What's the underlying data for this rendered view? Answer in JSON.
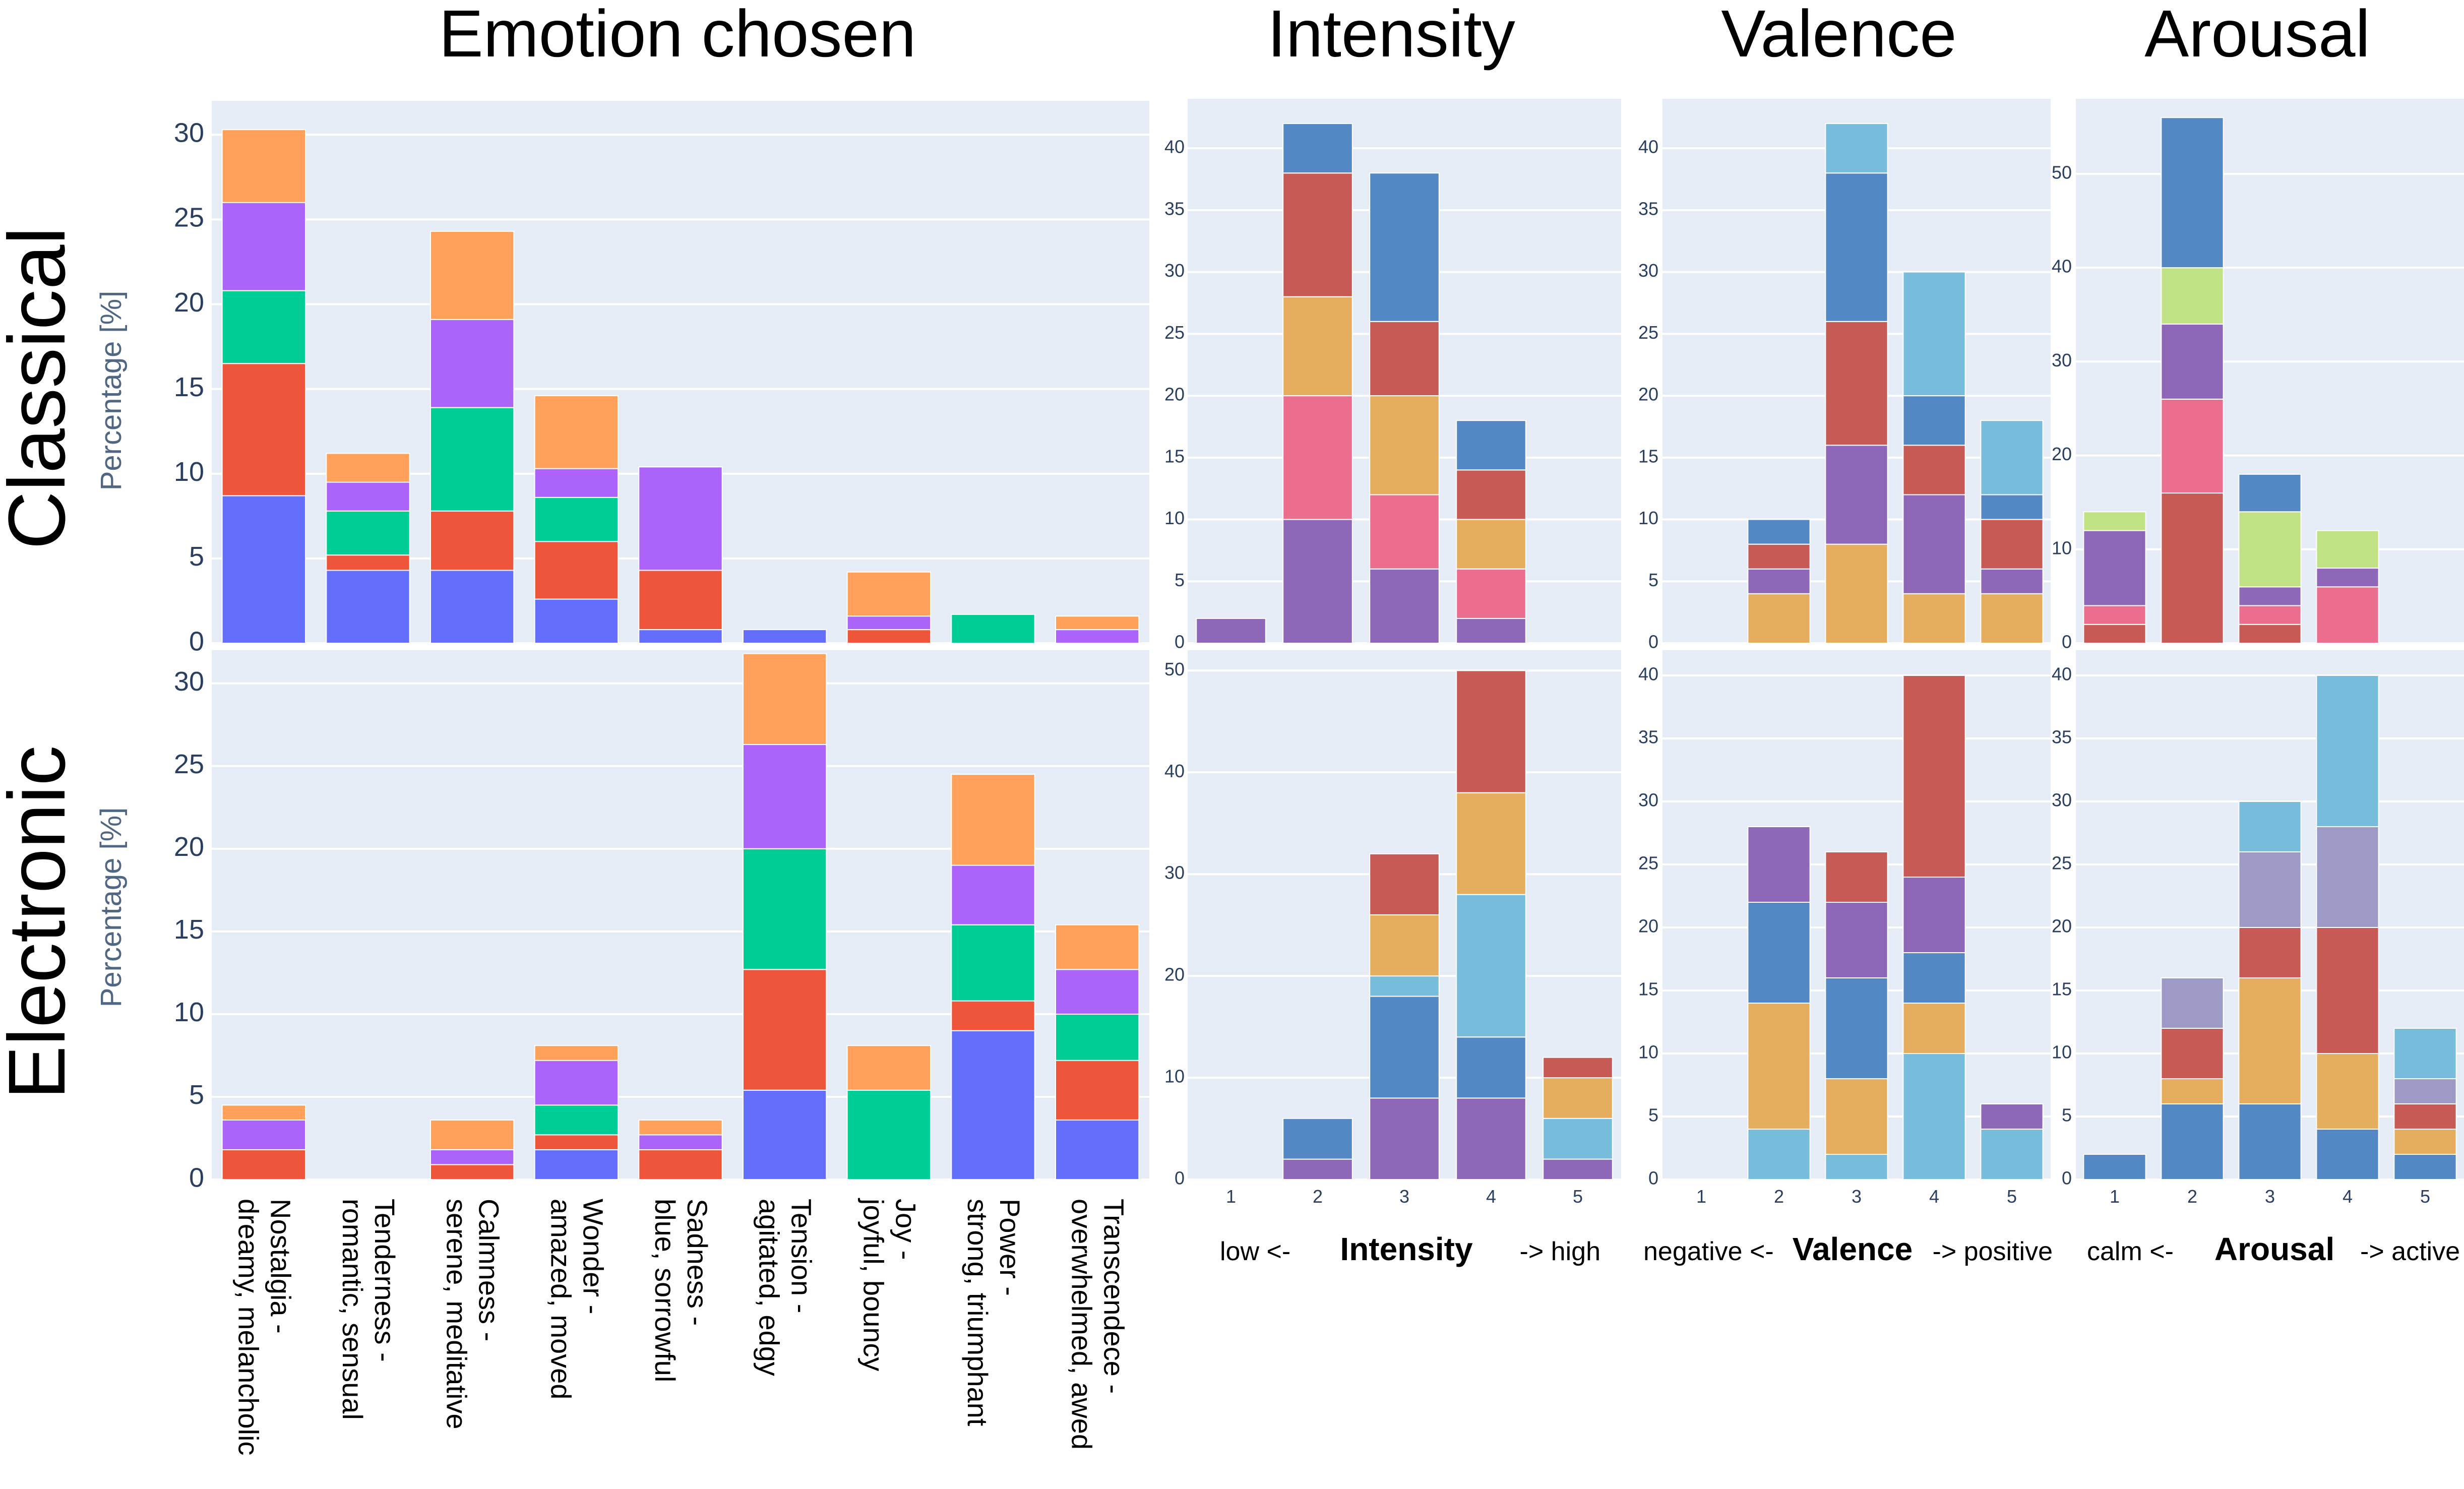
{
  "column_titles": {
    "emotion": "Emotion chosen",
    "intensity": "Intensity",
    "valence": "Valence",
    "arousal": "Arousal"
  },
  "row_labels": {
    "classical": "Classical",
    "electronic": "Electronic"
  },
  "ylabel": "Percentage [%]",
  "axis_titles": {
    "intensity": {
      "left": "low <-",
      "title": "Intensity",
      "right": "-> high"
    },
    "valence": {
      "left": "negative <-",
      "title": "Valence",
      "right": "-> positive"
    },
    "arousal": {
      "left": "calm <-",
      "title": "Arousal",
      "right": "-> active"
    }
  },
  "chart_data": [
    {
      "id": "emotion-classical",
      "type": "bar",
      "stacked": true,
      "categories": [
        "Nostalgia - dreamy, melancholic",
        "Tenderness - romantic, sensual",
        "Calmness - serene, meditative",
        "Wonder - amazed, moved",
        "Sadness - blue, sorrowful",
        "Tension - agitated, edgy",
        "Joy - joyful, bouncy",
        "Power - strong, triumphant",
        "Transcendece - overwhelmed, awed"
      ],
      "ylim": [
        0,
        32
      ],
      "yticks": [
        0,
        5,
        10,
        15,
        20,
        25,
        30
      ],
      "ylabel": "Percentage [%]",
      "series": [
        {
          "color": "#636efa",
          "values": [
            8.7,
            4.3,
            4.3,
            2.6,
            0.8,
            0.8,
            0,
            0,
            0
          ]
        },
        {
          "color": "#ef553b",
          "values": [
            7.8,
            0.9,
            3.5,
            3.4,
            3.5,
            0,
            0.8,
            0,
            0
          ]
        },
        {
          "color": "#00cc96",
          "values": [
            4.3,
            2.6,
            6.1,
            2.6,
            0,
            0,
            0,
            1.7,
            0
          ]
        },
        {
          "color": "#ab63fa",
          "values": [
            5.2,
            1.7,
            5.2,
            1.7,
            6.1,
            0,
            0.8,
            0,
            0.8
          ]
        },
        {
          "color": "#ffa15a",
          "values": [
            4.3,
            1.7,
            5.2,
            4.3,
            0,
            0,
            2.6,
            0,
            0.8
          ]
        }
      ]
    },
    {
      "id": "emotion-electronic",
      "type": "bar",
      "stacked": true,
      "categories": [
        "Nostalgia - dreamy, melancholic",
        "Tenderness - romantic, sensual",
        "Calmness - serene, meditative",
        "Wonder - amazed, moved",
        "Sadness - blue, sorrowful",
        "Tension - agitated, edgy",
        "Joy - joyful, bouncy",
        "Power - strong, triumphant",
        "Transcendece - overwhelmed, awed"
      ],
      "ylim": [
        0,
        32
      ],
      "yticks": [
        0,
        5,
        10,
        15,
        20,
        25,
        30
      ],
      "ylabel": "Percentage [%]",
      "series": [
        {
          "color": "#636efa",
          "values": [
            0,
            0,
            0,
            1.8,
            0,
            5.4,
            0,
            9.0,
            3.6
          ]
        },
        {
          "color": "#ef553b",
          "values": [
            1.8,
            0,
            0.9,
            0.9,
            1.8,
            7.3,
            0,
            1.8,
            3.6
          ]
        },
        {
          "color": "#00cc96",
          "values": [
            0,
            0,
            0,
            1.8,
            0,
            7.3,
            5.4,
            4.6,
            2.8
          ]
        },
        {
          "color": "#ab63fa",
          "values": [
            1.8,
            0,
            0.9,
            2.7,
            0.9,
            6.3,
            0,
            3.6,
            2.7
          ]
        },
        {
          "color": "#ffa15a",
          "values": [
            0.9,
            0,
            1.8,
            0.9,
            0.9,
            5.5,
            2.7,
            5.5,
            2.7
          ]
        }
      ]
    },
    {
      "id": "intensity-classical",
      "type": "bar",
      "stacked": true,
      "categories": [
        "1",
        "2",
        "3",
        "4",
        "5"
      ],
      "ylim": [
        0,
        44
      ],
      "yticks": [
        0,
        5,
        10,
        15,
        20,
        25,
        30,
        35,
        40
      ],
      "series": [
        {
          "color": "#8f67b8",
          "values": [
            2,
            10,
            6,
            2,
            0
          ]
        },
        {
          "color": "#eb6e8f",
          "values": [
            0,
            10,
            6,
            4,
            0
          ]
        },
        {
          "color": "#e6ad5e",
          "values": [
            0,
            8,
            8,
            4,
            0
          ]
        },
        {
          "color": "#c85a55",
          "values": [
            0,
            10,
            6,
            4,
            0
          ]
        },
        {
          "color": "#5388c5",
          "values": [
            0,
            4,
            12,
            4,
            0
          ]
        }
      ]
    },
    {
      "id": "valence-classical",
      "type": "bar",
      "stacked": true,
      "categories": [
        "1",
        "2",
        "3",
        "4",
        "5"
      ],
      "ylim": [
        0,
        44
      ],
      "yticks": [
        0,
        5,
        10,
        15,
        20,
        25,
        30,
        35,
        40
      ],
      "series": [
        {
          "color": "#e6ad5e",
          "values": [
            0,
            4,
            8,
            4,
            4
          ]
        },
        {
          "color": "#8f67b8",
          "values": [
            0,
            2,
            8,
            8,
            2
          ]
        },
        {
          "color": "#c85a55",
          "values": [
            0,
            2,
            10,
            4,
            4
          ]
        },
        {
          "color": "#5388c5",
          "values": [
            0,
            2,
            12,
            4,
            2
          ]
        },
        {
          "color": "#78bcdb",
          "values": [
            0,
            0,
            4,
            10,
            6
          ]
        }
      ]
    },
    {
      "id": "arousal-classical",
      "type": "bar",
      "stacked": true,
      "categories": [
        "1",
        "2",
        "3",
        "4",
        "5"
      ],
      "ylim": [
        0,
        58
      ],
      "yticks": [
        0,
        10,
        20,
        30,
        40,
        50
      ],
      "series": [
        {
          "color": "#c85a55",
          "values": [
            2,
            16,
            2,
            0,
            0
          ]
        },
        {
          "color": "#eb6e8f",
          "values": [
            2,
            10,
            2,
            6,
            0
          ]
        },
        {
          "color": "#8f67b8",
          "values": [
            8,
            8,
            2,
            2,
            0
          ]
        },
        {
          "color": "#c1e185",
          "values": [
            2,
            6,
            8,
            4,
            0
          ]
        },
        {
          "color": "#5388c5",
          "values": [
            0,
            16,
            4,
            0,
            0
          ]
        }
      ]
    },
    {
      "id": "intensity-electronic",
      "type": "bar",
      "stacked": true,
      "categories": [
        "1",
        "2",
        "3",
        "4",
        "5"
      ],
      "ylim": [
        0,
        52
      ],
      "yticks": [
        0,
        10,
        20,
        30,
        40,
        50
      ],
      "xlabel": "Intensity",
      "series": [
        {
          "color": "#8f67b8",
          "values": [
            0,
            2,
            8,
            8,
            2
          ]
        },
        {
          "color": "#5388c5",
          "values": [
            0,
            4,
            10,
            6,
            0
          ]
        },
        {
          "color": "#78bcdb",
          "values": [
            0,
            0,
            2,
            14,
            4
          ]
        },
        {
          "color": "#e6ad5e",
          "values": [
            0,
            0,
            6,
            10,
            4
          ]
        },
        {
          "color": "#c85a55",
          "values": [
            0,
            0,
            6,
            12,
            2
          ]
        }
      ]
    },
    {
      "id": "valence-electronic",
      "type": "bar",
      "stacked": true,
      "categories": [
        "1",
        "2",
        "3",
        "4",
        "5"
      ],
      "ylim": [
        0,
        42
      ],
      "yticks": [
        0,
        5,
        10,
        15,
        20,
        25,
        30,
        35,
        40
      ],
      "xlabel": "Valence",
      "series": [
        {
          "color": "#78bcdb",
          "values": [
            0,
            4,
            2,
            10,
            4
          ]
        },
        {
          "color": "#e6ad5e",
          "values": [
            0,
            10,
            6,
            4,
            0
          ]
        },
        {
          "color": "#5388c5",
          "values": [
            0,
            8,
            8,
            4,
            0
          ]
        },
        {
          "color": "#8f67b8",
          "values": [
            0,
            6,
            6,
            6,
            2
          ]
        },
        {
          "color": "#c85a55",
          "values": [
            0,
            0,
            4,
            16,
            0
          ]
        }
      ]
    },
    {
      "id": "arousal-electronic",
      "type": "bar",
      "stacked": true,
      "categories": [
        "1",
        "2",
        "3",
        "4",
        "5"
      ],
      "ylim": [
        0,
        42
      ],
      "yticks": [
        0,
        5,
        10,
        15,
        20,
        25,
        30,
        35,
        40
      ],
      "xlabel": "Arousal",
      "series": [
        {
          "color": "#5388c5",
          "values": [
            2,
            6,
            6,
            4,
            2
          ]
        },
        {
          "color": "#e6ad5e",
          "values": [
            0,
            2,
            10,
            6,
            2
          ]
        },
        {
          "color": "#c85a55",
          "values": [
            0,
            4,
            4,
            10,
            2
          ]
        },
        {
          "color": "#9d9ac5",
          "values": [
            0,
            4,
            6,
            8,
            2
          ]
        },
        {
          "color": "#78bcdb",
          "values": [
            0,
            0,
            4,
            12,
            4
          ]
        }
      ]
    }
  ]
}
